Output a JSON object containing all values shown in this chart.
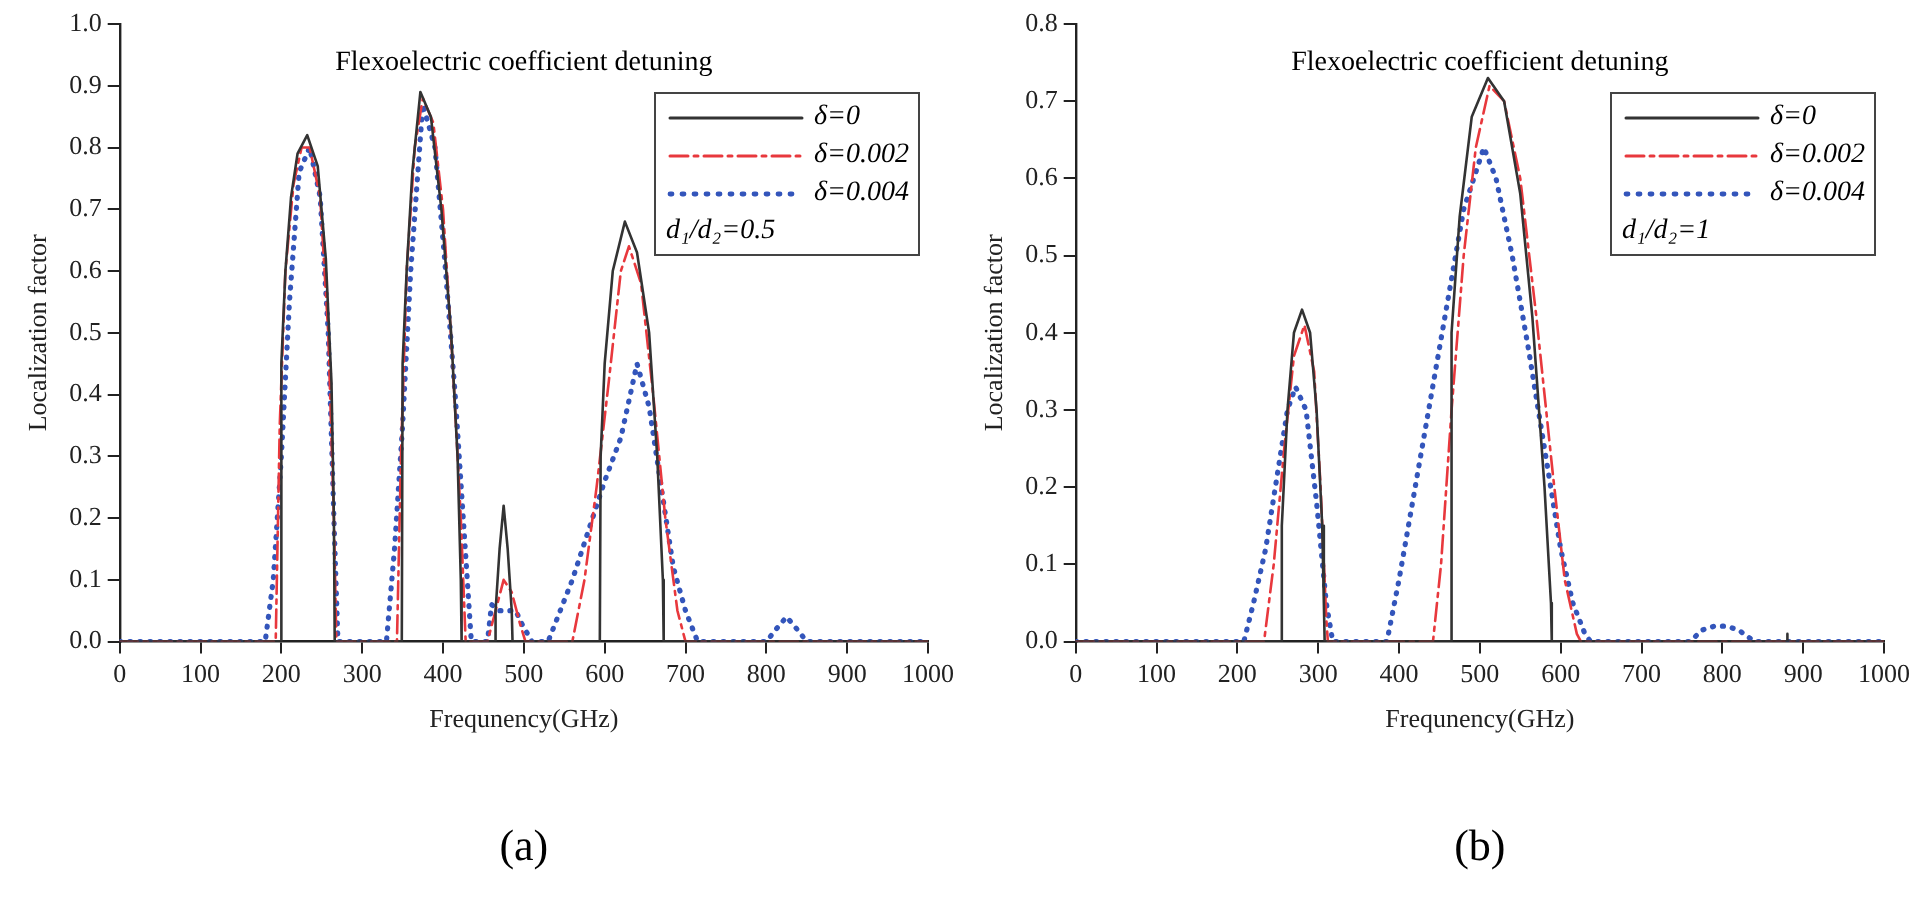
{
  "chart_data": [
    {
      "type": "line",
      "title": "Flexoelectric coefficient detuning",
      "xlabel": "Frequnency(GHz)",
      "ylabel": "Localization factor",
      "xlim": [
        0,
        1000
      ],
      "xticks": [
        0,
        100,
        200,
        300,
        400,
        500,
        600,
        700,
        800,
        900,
        1000
      ],
      "ylim": [
        0,
        1
      ],
      "yticks": [
        {
          "value": 0,
          "label": "0.0"
        },
        {
          "value": 0.1,
          "label": "0.1"
        },
        {
          "value": 0.2,
          "label": "0.2"
        },
        {
          "value": 0.3,
          "label": "0.3"
        },
        {
          "value": 0.4,
          "label": "0.4"
        },
        {
          "value": 0.5,
          "label": "0.5"
        },
        {
          "value": 0.6,
          "label": "0.6"
        },
        {
          "value": 0.7,
          "label": "0.7"
        },
        {
          "value": 0.8,
          "label": "0.8"
        },
        {
          "value": 0.9,
          "label": "0.9"
        },
        {
          "value": 1,
          "label": "1.0"
        }
      ],
      "grid": false,
      "legend": "top right",
      "marker": "none",
      "annotations": [
        "d₁/d₂=0.5",
        "(a)"
      ],
      "series": [
        {
          "name": "δ=0",
          "color": "#333333",
          "line_style": "solid",
          "x": [
            0,
            199,
            200,
            205,
            212,
            220,
            232,
            245,
            255,
            262,
            265,
            266,
            349,
            350,
            355,
            362,
            372,
            385,
            398,
            410,
            418,
            422,
            423,
            464,
            465,
            470,
            475,
            480,
            485,
            486,
            594,
            595,
            600,
            610,
            625,
            640,
            655,
            665,
            672,
            673,
            1000
          ],
          "values": [
            0,
            0,
            0.45,
            0.6,
            0.72,
            0.79,
            0.82,
            0.77,
            0.62,
            0.42,
            0.2,
            0,
            0,
            0.45,
            0.6,
            0.76,
            0.89,
            0.85,
            0.7,
            0.5,
            0.3,
            0.1,
            0,
            0,
            0.05,
            0.15,
            0.22,
            0.15,
            0.05,
            0,
            0,
            0.3,
            0.45,
            0.6,
            0.68,
            0.63,
            0.5,
            0.3,
            0.1,
            0,
            0
          ]
        },
        {
          "name": "δ=0.002",
          "color": "#e8383d",
          "line_style": "dashed",
          "x": [
            0,
            193,
            198,
            205,
            215,
            225,
            235,
            248,
            258,
            265,
            268,
            343,
            348,
            355,
            365,
            375,
            388,
            400,
            412,
            422,
            428,
            455,
            465,
            475,
            485,
            495,
            502,
            560,
            575,
            590,
            605,
            620,
            630,
            645,
            660,
            675,
            690,
            700,
            1000
          ],
          "values": [
            0,
            0,
            0.35,
            0.6,
            0.74,
            0.8,
            0.8,
            0.72,
            0.5,
            0.2,
            0,
            0,
            0.3,
            0.6,
            0.8,
            0.88,
            0.84,
            0.7,
            0.45,
            0.2,
            0,
            0,
            0.05,
            0.1,
            0.08,
            0.03,
            0,
            0,
            0.1,
            0.25,
            0.42,
            0.6,
            0.64,
            0.58,
            0.4,
            0.2,
            0.05,
            0,
            0
          ]
        },
        {
          "name": "δ=0.004",
          "color": "#3355bb",
          "line_style": "dotted",
          "x": [
            0,
            180,
            190,
            200,
            210,
            222,
            235,
            248,
            258,
            265,
            270,
            330,
            340,
            350,
            360,
            375,
            390,
            402,
            415,
            425,
            435,
            455,
            460,
            470,
            480,
            490,
            497,
            510,
            530,
            560,
            580,
            600,
            620,
            640,
            655,
            670,
            685,
            700,
            715,
            800,
            812,
            825,
            838,
            850,
            1000
          ],
          "values": [
            0,
            0,
            0.1,
            0.3,
            0.55,
            0.76,
            0.8,
            0.72,
            0.5,
            0.2,
            0,
            0,
            0.15,
            0.35,
            0.6,
            0.87,
            0.8,
            0.62,
            0.4,
            0.2,
            0,
            0,
            0.06,
            0.05,
            0.05,
            0.05,
            0.03,
            0,
            0,
            0.1,
            0.18,
            0.26,
            0.33,
            0.45,
            0.38,
            0.25,
            0.12,
            0.05,
            0,
            0,
            0.02,
            0.04,
            0.02,
            0,
            0
          ]
        }
      ]
    },
    {
      "type": "line",
      "title": "Flexoelectric coefficient detuning",
      "xlabel": "Frequnency(GHz)",
      "ylabel": "Localization factor",
      "xlim": [
        0,
        1000
      ],
      "xticks": [
        0,
        100,
        200,
        300,
        400,
        500,
        600,
        700,
        800,
        900,
        1000
      ],
      "ylim": [
        0,
        0.8
      ],
      "yticks": [
        {
          "value": 0,
          "label": "0.0"
        },
        {
          "value": 0.1,
          "label": "0.1"
        },
        {
          "value": 0.2,
          "label": "0.2"
        },
        {
          "value": 0.3,
          "label": "0.3"
        },
        {
          "value": 0.4,
          "label": "0.4"
        },
        {
          "value": 0.5,
          "label": "0.5"
        },
        {
          "value": 0.6,
          "label": "0.6"
        },
        {
          "value": 0.7,
          "label": "0.7"
        },
        {
          "value": 0.8,
          "label": "0.8"
        }
      ],
      "grid": false,
      "legend": "top right",
      "marker": "none",
      "annotations": [
        "d₁/d₂=1",
        "(b)"
      ],
      "series": [
        {
          "name": "δ=0",
          "color": "#333333",
          "line_style": "solid",
          "x": [
            0,
            254,
            255,
            262,
            270,
            280,
            290,
            298,
            305,
            307,
            308,
            464,
            465,
            475,
            490,
            510,
            530,
            550,
            565,
            580,
            588,
            589,
            879,
            880,
            881,
            1000
          ],
          "values": [
            0,
            0,
            0.15,
            0.3,
            0.4,
            0.43,
            0.4,
            0.3,
            0.15,
            0.05,
            0,
            0,
            0.4,
            0.55,
            0.68,
            0.73,
            0.7,
            0.58,
            0.42,
            0.2,
            0.05,
            0,
            0,
            0.01,
            0,
            0
          ]
        },
        {
          "name": "δ=0.002",
          "color": "#e8383d",
          "line_style": "dashed",
          "x": [
            0,
            233,
            245,
            258,
            270,
            283,
            295,
            303,
            310,
            312,
            442,
            452,
            465,
            480,
            495,
            512,
            530,
            550,
            570,
            590,
            605,
            620,
            625,
            1000
          ],
          "values": [
            0,
            0,
            0.1,
            0.25,
            0.37,
            0.41,
            0.35,
            0.2,
            0.03,
            0,
            0,
            0.1,
            0.3,
            0.5,
            0.64,
            0.72,
            0.7,
            0.6,
            0.42,
            0.22,
            0.08,
            0.01,
            0,
            0
          ]
        },
        {
          "name": "δ=0.004",
          "color": "#3355bb",
          "line_style": "dotted",
          "x": [
            0,
            208,
            220,
            235,
            250,
            262,
            272,
            285,
            298,
            310,
            318,
            385,
            400,
            420,
            440,
            460,
            480,
            505,
            520,
            540,
            560,
            580,
            600,
            615,
            630,
            637,
            760,
            775,
            790,
            805,
            820,
            840,
            1000
          ],
          "values": [
            0,
            0,
            0.05,
            0.12,
            0.22,
            0.3,
            0.33,
            0.3,
            0.18,
            0.05,
            0,
            0,
            0.08,
            0.2,
            0.32,
            0.44,
            0.56,
            0.64,
            0.6,
            0.5,
            0.38,
            0.25,
            0.12,
            0.05,
            0.01,
            0,
            0,
            0.015,
            0.02,
            0.02,
            0.015,
            0,
            0
          ]
        }
      ]
    }
  ]
}
